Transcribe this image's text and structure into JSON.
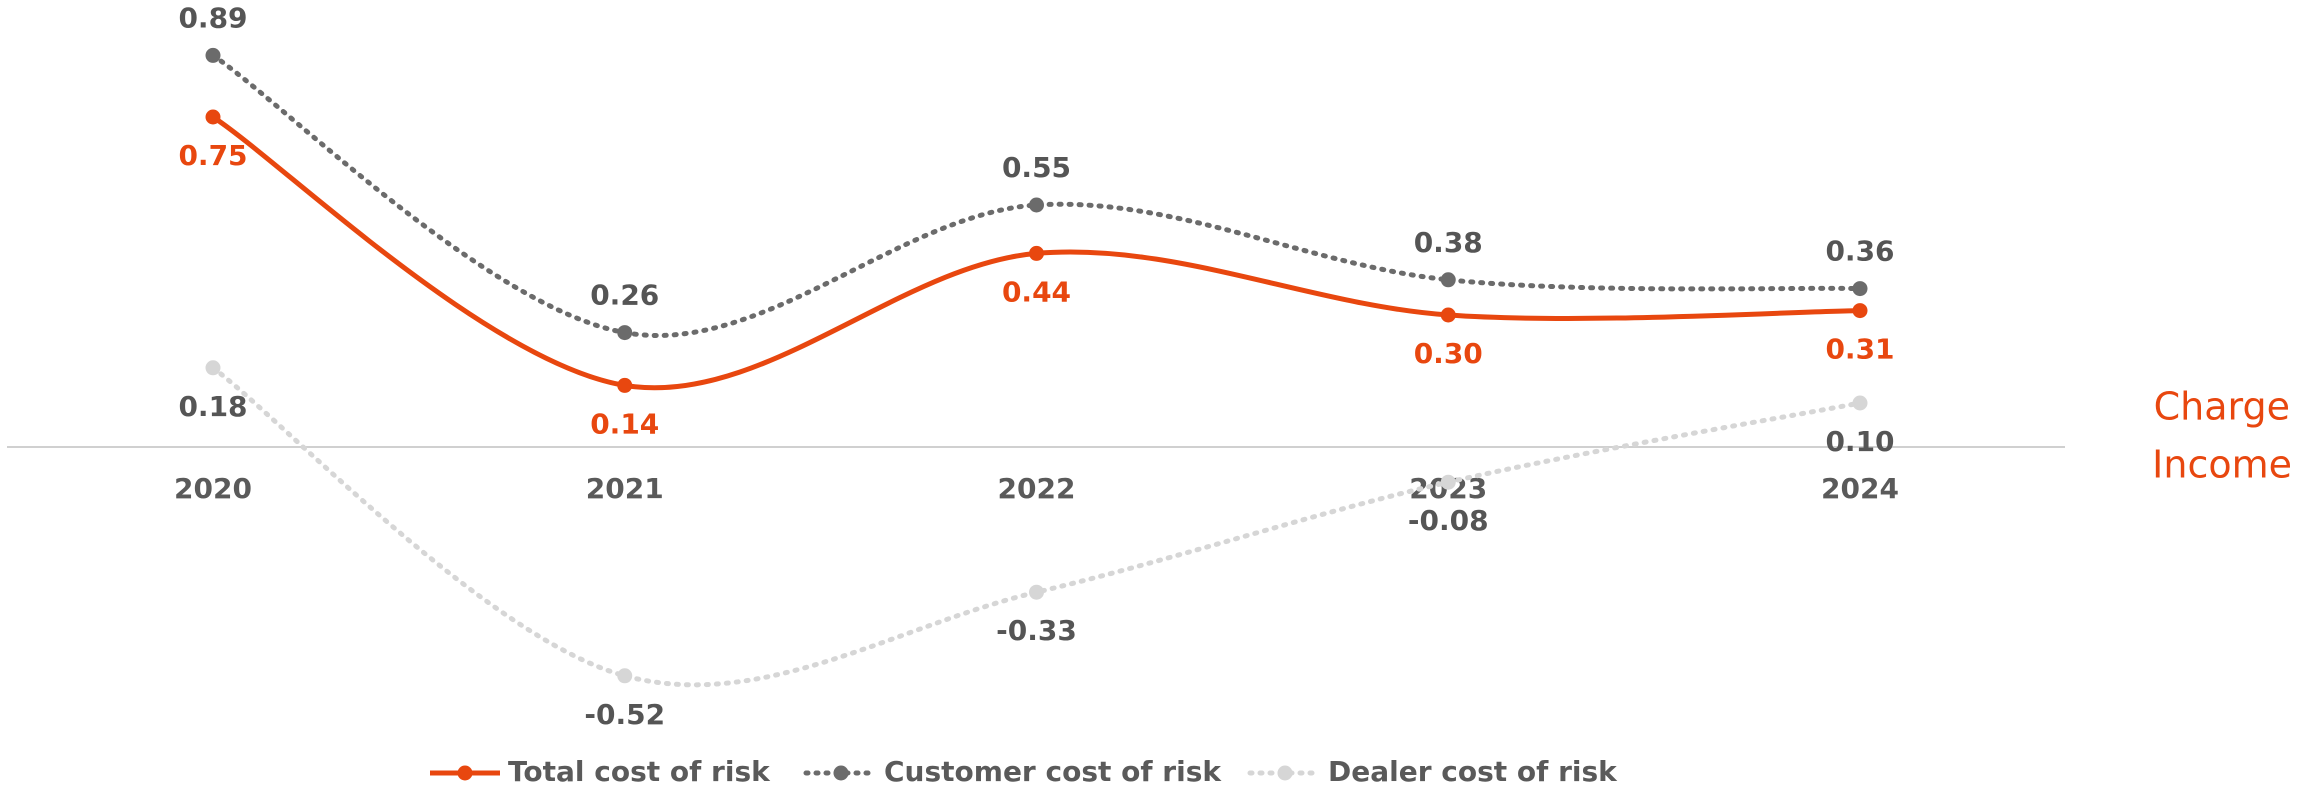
{
  "chart_data": {
    "type": "line",
    "categories": [
      "2020",
      "2021",
      "2022",
      "2023",
      "2024"
    ],
    "series": [
      {
        "name": "Total cost of risk",
        "color": "#e8470f",
        "style": "solid",
        "label_position": "below",
        "values": [
          0.75,
          0.14,
          0.44,
          0.3,
          0.31
        ],
        "value_labels": [
          "0.75",
          "0.14",
          "0.44",
          "0.30",
          "0.31"
        ]
      },
      {
        "name": "Customer cost of risk",
        "color": "#6b6b6b",
        "style": "dotted",
        "label_position": "above",
        "values": [
          0.89,
          0.26,
          0.55,
          0.38,
          0.36
        ],
        "value_labels": [
          "0.89",
          "0.26",
          "0.55",
          "0.38",
          "0.36"
        ]
      },
      {
        "name": "Dealer cost of risk",
        "color": "#d6d6d6",
        "style": "dotted",
        "label_position": "below",
        "values": [
          0.18,
          -0.52,
          -0.33,
          -0.08,
          0.1
        ],
        "value_labels": [
          "0.18",
          "-0.52",
          "-0.33",
          "-0.08",
          "0.10"
        ]
      }
    ],
    "ylim": [
      -0.7,
      1.0
    ],
    "annotations": [
      "Charge",
      "Income"
    ]
  }
}
